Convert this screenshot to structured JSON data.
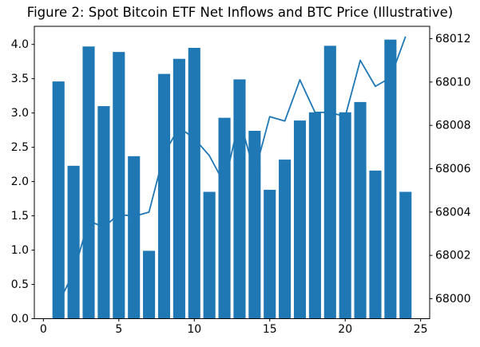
{
  "chart_data": {
    "type": "combo-bar-line",
    "title": "Figure 2: Spot Bitcoin ETF Net Inflows and BTC Price (Illustrative)",
    "x": [
      1,
      2,
      3,
      4,
      5,
      6,
      7,
      8,
      9,
      10,
      11,
      12,
      13,
      14,
      15,
      16,
      17,
      18,
      19,
      20,
      21,
      22,
      23,
      24
    ],
    "series": [
      {
        "name": "Spot Bitcoin ETF net inflows",
        "type": "bar",
        "axis": "left",
        "color": "#1f77b4",
        "bar_width": 0.8,
        "values": [
          3.46,
          2.23,
          3.97,
          3.1,
          3.89,
          2.37,
          0.99,
          3.57,
          3.79,
          3.95,
          1.85,
          2.93,
          3.49,
          2.74,
          1.88,
          2.32,
          2.89,
          3.01,
          3.98,
          3.01,
          3.16,
          2.16,
          4.07,
          1.85
        ]
      },
      {
        "name": "BTC price",
        "type": "line",
        "axis": "right",
        "color": "#1f77b4",
        "line_width": 1.8,
        "values": [
          67999.8,
          68001.2,
          68003.6,
          68003.3,
          68003.9,
          68003.8,
          68004.0,
          68006.7,
          68007.9,
          68007.4,
          68006.6,
          68005.3,
          68008.3,
          68005.8,
          68008.4,
          68008.2,
          68010.1,
          68008.6,
          68008.6,
          68008.4,
          68011.0,
          68009.8,
          68010.2,
          68012.1
        ]
      }
    ],
    "x_axis": {
      "ticks": [
        0,
        5,
        10,
        15,
        20,
        25
      ],
      "tick_labels": [
        "0",
        "5",
        "10",
        "15",
        "20",
        "25"
      ],
      "range": [
        -0.6,
        25.6
      ]
    },
    "left_axis": {
      "ticks": [
        0,
        0.5,
        1.0,
        1.5,
        2.0,
        2.5,
        3.0,
        3.5,
        4.0
      ],
      "tick_labels": [
        "0.0",
        "0.5",
        "1.0",
        "1.5",
        "2.0",
        "2.5",
        "3.0",
        "3.5",
        "4.0"
      ],
      "range": [
        0,
        4.264
      ]
    },
    "right_axis": {
      "ticks": [
        68000,
        68002,
        68004,
        68006,
        68008,
        68010,
        68012
      ],
      "tick_labels": [
        "68000",
        "68002",
        "68004",
        "68006",
        "68008",
        "68010",
        "68012"
      ],
      "range": [
        67999.08,
        68012.57
      ]
    },
    "grid": false,
    "legend": "none",
    "background": "#ffffff",
    "frame_color": "#000000"
  }
}
